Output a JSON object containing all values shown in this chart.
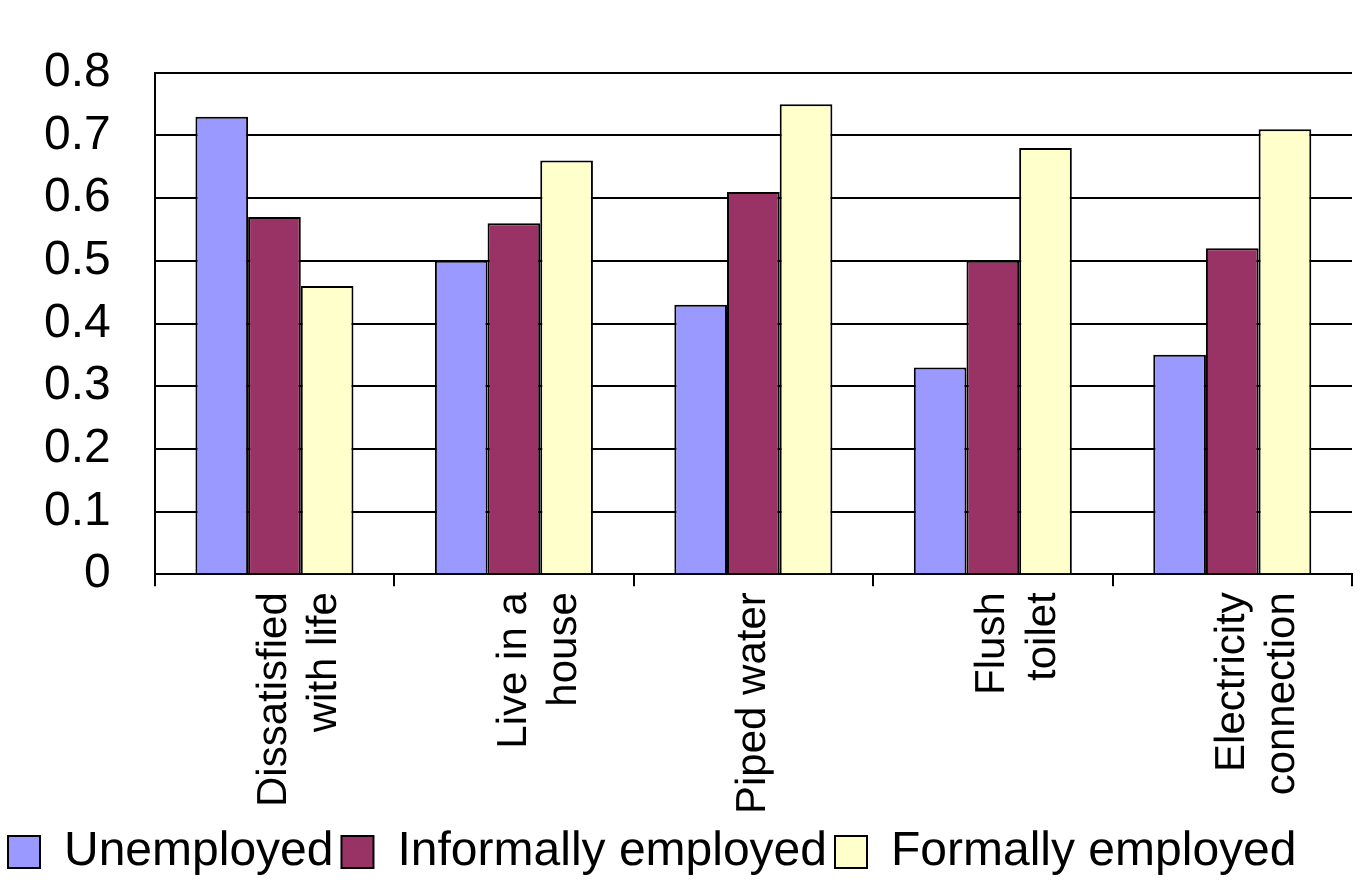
{
  "chart_data": {
    "type": "bar",
    "categories": [
      "Dissatisfied with life",
      "Live in a house",
      "Piped water",
      "Flush toilet",
      "Electricity connection"
    ],
    "series": [
      {
        "name": "Unemployed",
        "color": "#9999ff",
        "values": [
          0.73,
          0.5,
          0.43,
          0.33,
          0.35
        ]
      },
      {
        "name": "Informally employed",
        "color": "#993366",
        "values": [
          0.57,
          0.56,
          0.61,
          0.5,
          0.52
        ]
      },
      {
        "name": "Formally employed",
        "color": "#ffffcc",
        "values": [
          0.46,
          0.66,
          0.75,
          0.68,
          0.71
        ]
      }
    ],
    "ylim": [
      0,
      0.8
    ],
    "yticks": [
      0,
      0.1,
      0.2,
      0.3,
      0.4,
      0.5,
      0.6,
      0.7,
      0.8
    ],
    "grid": "y",
    "legend": "bottom"
  }
}
